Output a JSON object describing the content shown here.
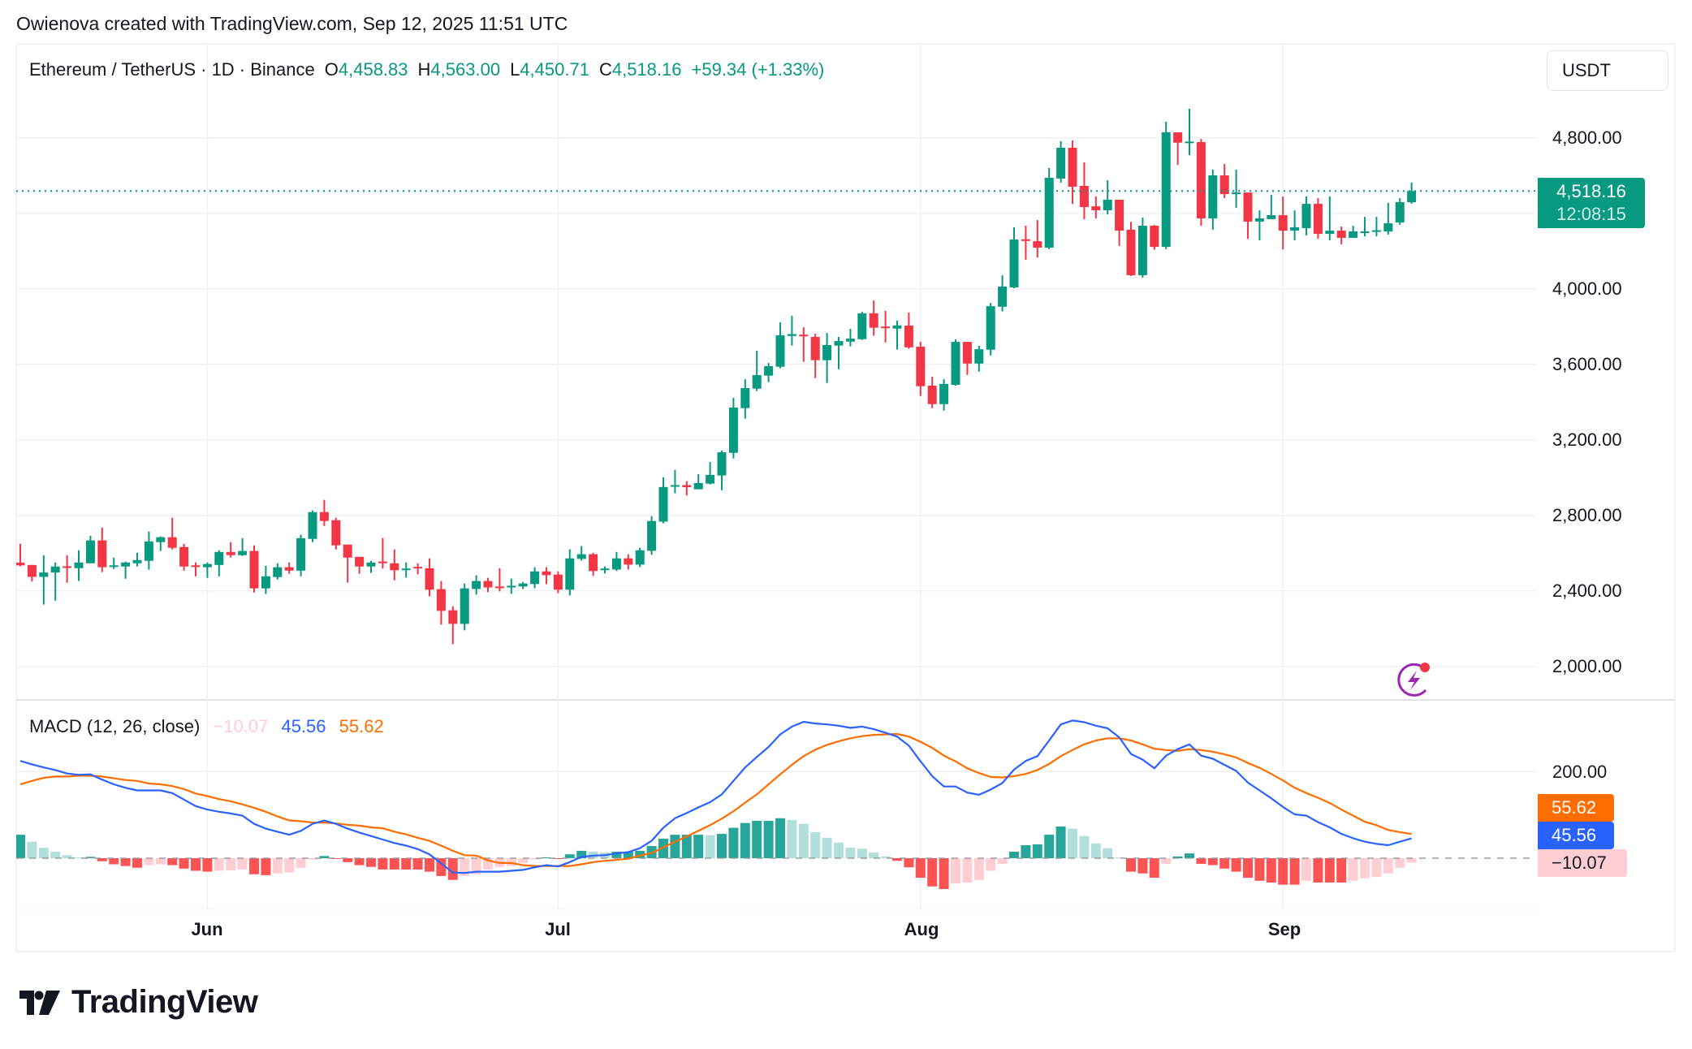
{
  "header": {
    "credit": "Owienova created with TradingView.com, Sep 12, 2025 11:51 UTC"
  },
  "legend": {
    "symbol": "Ethereum / TetherUS · 1D · Binance",
    "o_label": "O",
    "o_value": "4,458.83",
    "h_label": "H",
    "h_value": "4,563.00",
    "l_label": "L",
    "l_value": "4,450.71",
    "c_label": "C",
    "c_value": "4,518.16",
    "change": "+59.34 (+1.33%)"
  },
  "currency_button": "USDT",
  "last_price": {
    "price": "4,518.16",
    "countdown": "12:08:15"
  },
  "price_axis_labels": [
    "4,800.00",
    "4,000.00",
    "3,600.00",
    "3,200.00",
    "2,800.00",
    "2,400.00",
    "2,000.00"
  ],
  "macd_legend": {
    "title": "MACD (12, 26, close)",
    "histogram": "−10.07",
    "macd": "45.56",
    "signal": "55.62"
  },
  "macd_axis_labels": [
    "200.00"
  ],
  "macd_boxes": {
    "signal": "55.62",
    "macd": "45.56",
    "histogram": "−10.07"
  },
  "time_axis_labels": [
    "Jun",
    "Jul",
    "Aug",
    "Sep"
  ],
  "logo": {
    "text": "TradingView"
  },
  "colors": {
    "up": "#089981",
    "down": "#f23645",
    "macd": "#2962ff",
    "signal": "#ff6d00",
    "hist_up_strong": "#26a69a",
    "hist_up_weak": "#b2dfdb",
    "hist_down_strong": "#ff5252",
    "hist_down_weak": "#ffcdd2",
    "alert_icon": "#9c27b0"
  },
  "icons": {
    "alert": "lightning-alert-icon"
  },
  "chart_data": [
    {
      "type": "candlestick",
      "title": "Ethereum / TetherUS · 1D · Binance",
      "x_tick_labels": [
        "Jun",
        "Jul",
        "Aug",
        "Sep"
      ],
      "y_ticks": [
        2000,
        2400,
        2800,
        3200,
        3600,
        4000,
        4400,
        4800
      ],
      "ylim": [
        1850,
        5050
      ],
      "grid": true,
      "ohlc": [
        [
          2549,
          2649,
          2530,
          2535
        ],
        [
          2537,
          2537,
          2449,
          2474
        ],
        [
          2474,
          2589,
          2327,
          2497
        ],
        [
          2497,
          2550,
          2348,
          2529
        ],
        [
          2530,
          2589,
          2443,
          2525
        ],
        [
          2520,
          2615,
          2452,
          2550
        ],
        [
          2546,
          2692,
          2546,
          2667
        ],
        [
          2667,
          2735,
          2499,
          2525
        ],
        [
          2527,
          2576,
          2516,
          2535
        ],
        [
          2529,
          2555,
          2464,
          2550
        ],
        [
          2546,
          2602,
          2529,
          2563
        ],
        [
          2559,
          2714,
          2512,
          2662
        ],
        [
          2658,
          2688,
          2611,
          2684
        ],
        [
          2684,
          2787,
          2619,
          2628
        ],
        [
          2632,
          2649,
          2507,
          2529
        ],
        [
          2535,
          2550,
          2477,
          2529
        ],
        [
          2525,
          2550,
          2469,
          2542
        ],
        [
          2537,
          2615,
          2477,
          2606
        ],
        [
          2606,
          2658,
          2576,
          2589
        ],
        [
          2589,
          2679,
          2585,
          2611
        ],
        [
          2611,
          2641,
          2391,
          2413
        ],
        [
          2413,
          2533,
          2383,
          2477
        ],
        [
          2473,
          2546,
          2460,
          2525
        ],
        [
          2525,
          2550,
          2490,
          2507
        ],
        [
          2507,
          2697,
          2477,
          2679
        ],
        [
          2675,
          2826,
          2658,
          2817
        ],
        [
          2817,
          2882,
          2744,
          2770
        ],
        [
          2774,
          2787,
          2619,
          2641
        ],
        [
          2645,
          2645,
          2443,
          2576
        ],
        [
          2580,
          2580,
          2490,
          2529
        ],
        [
          2529,
          2559,
          2495,
          2550
        ],
        [
          2555,
          2680,
          2518,
          2550
        ],
        [
          2546,
          2619,
          2456,
          2509
        ],
        [
          2512,
          2550,
          2470,
          2518
        ],
        [
          2527,
          2546,
          2487,
          2523
        ],
        [
          2520,
          2572,
          2371,
          2406
        ],
        [
          2409,
          2452,
          2221,
          2294
        ],
        [
          2297,
          2318,
          2118,
          2225
        ],
        [
          2225,
          2439,
          2191,
          2413
        ],
        [
          2410,
          2482,
          2380,
          2452
        ],
        [
          2452,
          2469,
          2393,
          2418
        ],
        [
          2423,
          2520,
          2397,
          2418
        ],
        [
          2418,
          2465,
          2384,
          2427
        ],
        [
          2423,
          2447,
          2410,
          2439
        ],
        [
          2436,
          2525,
          2414,
          2503
        ],
        [
          2503,
          2525,
          2436,
          2483
        ],
        [
          2486,
          2503,
          2388,
          2406
        ],
        [
          2406,
          2619,
          2376,
          2572
        ],
        [
          2569,
          2637,
          2560,
          2594
        ],
        [
          2594,
          2602,
          2479,
          2505
        ],
        [
          2514,
          2529,
          2492,
          2518
        ],
        [
          2513,
          2606,
          2505,
          2572
        ],
        [
          2572,
          2594,
          2513,
          2539
        ],
        [
          2539,
          2628,
          2526,
          2615
        ],
        [
          2612,
          2796,
          2591,
          2770
        ],
        [
          2767,
          3002,
          2758,
          2950
        ],
        [
          2958,
          3041,
          2917,
          2960
        ],
        [
          2960,
          2981,
          2905,
          2949
        ],
        [
          2938,
          3018,
          2938,
          2971
        ],
        [
          2968,
          3082,
          2964,
          3014
        ],
        [
          3011,
          3143,
          2933,
          3134
        ],
        [
          3131,
          3422,
          3101,
          3371
        ],
        [
          3368,
          3521,
          3312,
          3474
        ],
        [
          3471,
          3672,
          3458,
          3543
        ],
        [
          3540,
          3607,
          3506,
          3590
        ],
        [
          3587,
          3822,
          3579,
          3754
        ],
        [
          3750,
          3857,
          3699,
          3760
        ],
        [
          3757,
          3796,
          3613,
          3748
        ],
        [
          3745,
          3762,
          3527,
          3622
        ],
        [
          3622,
          3766,
          3501,
          3702
        ],
        [
          3699,
          3745,
          3574,
          3723
        ],
        [
          3720,
          3788,
          3695,
          3736
        ],
        [
          3733,
          3878,
          3729,
          3870
        ],
        [
          3870,
          3938,
          3751,
          3794
        ],
        [
          3800,
          3883,
          3716,
          3795
        ],
        [
          3789,
          3831,
          3678,
          3806
        ],
        [
          3805,
          3874,
          3682,
          3690
        ],
        [
          3693,
          3719,
          3432,
          3484
        ],
        [
          3487,
          3534,
          3368,
          3389
        ],
        [
          3389,
          3521,
          3355,
          3496
        ],
        [
          3491,
          3732,
          3487,
          3719
        ],
        [
          3719,
          3719,
          3544,
          3604
        ],
        [
          3604,
          3698,
          3561,
          3680
        ],
        [
          3677,
          3925,
          3647,
          3908
        ],
        [
          3905,
          4072,
          3880,
          4012
        ],
        [
          4007,
          4326,
          4003,
          4261
        ],
        [
          4262,
          4334,
          4154,
          4255
        ],
        [
          4252,
          4364,
          4166,
          4218
        ],
        [
          4218,
          4640,
          4210,
          4588
        ],
        [
          4584,
          4782,
          4562,
          4747
        ],
        [
          4747,
          4786,
          4450,
          4541
        ],
        [
          4545,
          4670,
          4369,
          4433
        ],
        [
          4437,
          4489,
          4373,
          4416
        ],
        [
          4416,
          4575,
          4394,
          4472
        ],
        [
          4472,
          4472,
          4227,
          4308
        ],
        [
          4313,
          4355,
          4068,
          4072
        ],
        [
          4072,
          4377,
          4059,
          4334
        ],
        [
          4334,
          4338,
          4207,
          4222
        ],
        [
          4222,
          4885,
          4210,
          4829
        ],
        [
          4829,
          4829,
          4657,
          4774
        ],
        [
          4778,
          4954,
          4708,
          4780
        ],
        [
          4777,
          4794,
          4334,
          4373
        ],
        [
          4373,
          4631,
          4313,
          4601
        ],
        [
          4601,
          4661,
          4480,
          4502
        ],
        [
          4508,
          4631,
          4429,
          4510
        ],
        [
          4510,
          4510,
          4265,
          4356
        ],
        [
          4356,
          4416,
          4257,
          4373
        ],
        [
          4369,
          4498,
          4369,
          4390
        ],
        [
          4390,
          4489,
          4209,
          4308
        ],
        [
          4308,
          4416,
          4257,
          4326
        ],
        [
          4321,
          4489,
          4283,
          4450
        ],
        [
          4450,
          4480,
          4265,
          4291
        ],
        [
          4291,
          4489,
          4257,
          4308
        ],
        [
          4308,
          4330,
          4235,
          4270
        ],
        [
          4270,
          4334,
          4270,
          4304
        ],
        [
          4302,
          4381,
          4278,
          4304
        ],
        [
          4306,
          4381,
          4278,
          4310
        ],
        [
          4304,
          4455,
          4287,
          4347
        ],
        [
          4351,
          4480,
          4339,
          4459
        ],
        [
          4458.83,
          4563,
          4450.71,
          4518.16
        ]
      ],
      "last_close": 4518.16
    },
    {
      "type": "line",
      "title": "MACD (12, 26, close)",
      "y_ticks": [
        200
      ],
      "grid": true,
      "series": [
        {
          "name": "MACD",
          "values": [
            224,
            216,
            209,
            203,
            195,
            192,
            193,
            181,
            170,
            162,
            156,
            156,
            156,
            150,
            135,
            120,
            112,
            107,
            103,
            98,
            79,
            68,
            61,
            54,
            63,
            79,
            87,
            79,
            68,
            59,
            51,
            43,
            35,
            29,
            21,
            9,
            -12,
            -33,
            -34,
            -31,
            -31,
            -31,
            -29,
            -27,
            -21,
            -16,
            -19,
            -9,
            3,
            6,
            7,
            11,
            14,
            23,
            40,
            70,
            92,
            104,
            117,
            129,
            147,
            178,
            209,
            233,
            256,
            285,
            303,
            314,
            310,
            308,
            305,
            300,
            303,
            297,
            289,
            280,
            259,
            223,
            189,
            165,
            165,
            151,
            146,
            158,
            173,
            204,
            224,
            235,
            271,
            308,
            317,
            313,
            305,
            299,
            278,
            240,
            227,
            207,
            236,
            251,
            262,
            236,
            229,
            215,
            201,
            174,
            156,
            138,
            118,
            101,
            98,
            83,
            71,
            56,
            46,
            38,
            33,
            30,
            38,
            45.56
          ]
        },
        {
          "name": "Signal",
          "values": [
            170,
            178,
            185,
            188,
            188,
            190,
            190,
            188,
            184,
            180,
            178,
            172,
            170,
            166,
            159,
            149,
            143,
            136,
            131,
            124,
            116,
            107,
            96,
            87,
            85,
            82,
            82,
            80,
            77,
            75,
            71,
            69,
            61,
            55,
            47,
            40,
            29,
            17,
            7,
            6,
            -5,
            -11,
            -11,
            -16,
            -18,
            -18,
            -18,
            -18,
            -14,
            -9,
            -6,
            -4,
            -1,
            6,
            12,
            25,
            38,
            50,
            63,
            76,
            91,
            108,
            128,
            147,
            170,
            193,
            215,
            235,
            250,
            261,
            269,
            276,
            281,
            284,
            285,
            286,
            280,
            268,
            254,
            236,
            223,
            207,
            196,
            187,
            186,
            189,
            194,
            203,
            217,
            235,
            249,
            262,
            271,
            276,
            276,
            271,
            262,
            252,
            249,
            247,
            251,
            249,
            245,
            239,
            232,
            219,
            208,
            194,
            179,
            162,
            150,
            139,
            127,
            112,
            98,
            84,
            76,
            65,
            60,
            55.62
          ]
        },
        {
          "name": "Histogram",
          "type": "bar",
          "values": [
            54,
            38,
            24,
            15,
            7,
            2,
            3,
            -7,
            -14,
            -18,
            -22,
            -16,
            -14,
            -16,
            -24,
            -29,
            -31,
            -29,
            -28,
            -26,
            -37,
            -39,
            -35,
            -33,
            -22,
            -3,
            5,
            -1,
            -9,
            -16,
            -20,
            -26,
            -26,
            -26,
            -26,
            -31,
            -41,
            -50,
            -41,
            -37,
            -26,
            -20,
            -18,
            -11,
            -3,
            2,
            -1,
            9,
            17,
            15,
            13,
            15,
            15,
            17,
            28,
            45,
            54,
            54,
            54,
            53,
            56,
            70,
            81,
            86,
            86,
            92,
            88,
            79,
            60,
            47,
            36,
            24,
            22,
            13,
            4,
            -6,
            -21,
            -45,
            -65,
            -71,
            -58,
            -56,
            -50,
            -29,
            -13,
            15,
            30,
            32,
            54,
            73,
            68,
            51,
            34,
            23,
            2,
            -31,
            -35,
            -45,
            -13,
            4,
            11,
            -13,
            -16,
            -24,
            -31,
            -45,
            -52,
            -56,
            -61,
            -61,
            -52,
            -56,
            -56,
            -56,
            -52,
            -46,
            -43,
            -35,
            -22,
            -10.07
          ]
        }
      ]
    }
  ]
}
